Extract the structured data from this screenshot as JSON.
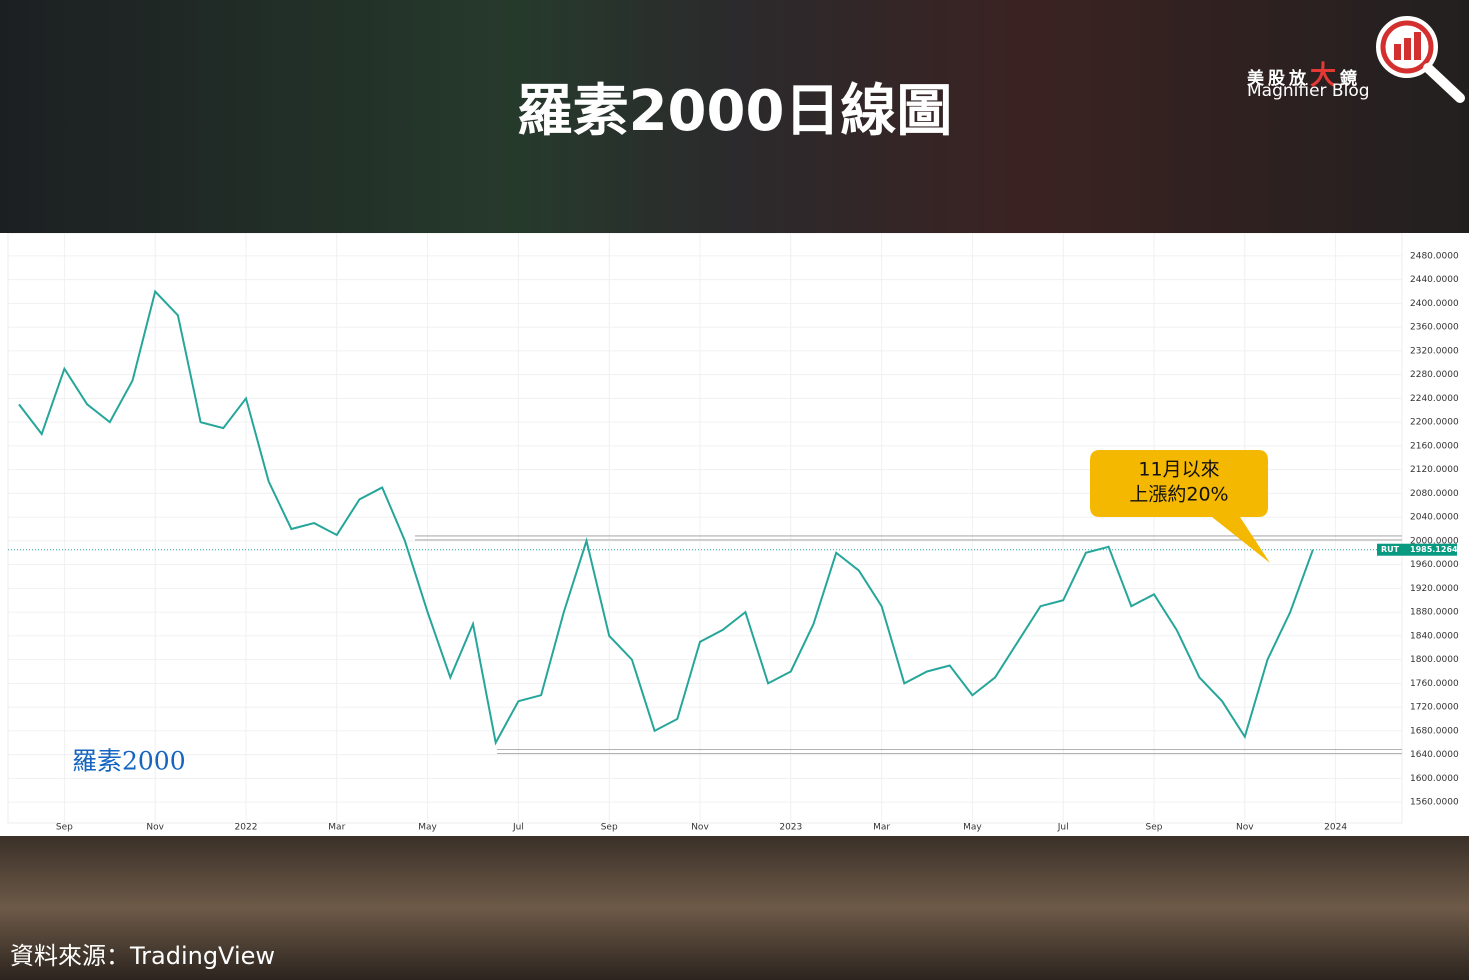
{
  "header": {
    "title": "羅素2000日線圖",
    "brand_parts": [
      "美股放",
      "大",
      "鏡"
    ],
    "brand_sub": "Magnifier Blog"
  },
  "chart_data": {
    "type": "line",
    "label": "羅素2000",
    "callout": [
      "11月以來",
      "上漲約20%"
    ],
    "categories": [
      null,
      null,
      "Sep",
      null,
      null,
      null,
      "Nov",
      null,
      null,
      null,
      "2022",
      null,
      null,
      null,
      "Mar",
      null,
      null,
      null,
      "May",
      null,
      null,
      null,
      "Jul",
      null,
      null,
      null,
      "Sep",
      null,
      null,
      null,
      "Nov",
      null,
      null,
      null,
      "2023",
      null,
      null,
      null,
      "Mar",
      null,
      null,
      null,
      "May",
      null,
      null,
      null,
      "Jul",
      null,
      null,
      null,
      "Sep",
      null,
      null,
      null,
      "Nov",
      null,
      null,
      null,
      "2024"
    ],
    "series": [
      {
        "name": "RUT",
        "color": "#26a69a",
        "values": [
          2230,
          2180,
          2290,
          2230,
          2200,
          2270,
          2420,
          2380,
          2200,
          2190,
          2240,
          2100,
          2020,
          2030,
          2010,
          2070,
          2090,
          2000,
          1880,
          1770,
          1860,
          1660,
          1730,
          1740,
          1880,
          2000,
          1840,
          1800,
          1680,
          1700,
          1830,
          1850,
          1880,
          1760,
          1780,
          1860,
          1980,
          1950,
          1890,
          1760,
          1780,
          1790,
          1740,
          1770,
          1830,
          1890,
          1900,
          1980,
          1990,
          1890,
          1910,
          1850,
          1770,
          1730,
          1670,
          1800,
          1880,
          1985.1264,
          null
        ]
      }
    ],
    "last_price": 1985.1264,
    "reference_lines": [
      2005,
      1645
    ],
    "ylim": [
      1545,
      2490
    ],
    "yticks": [
      {
        "value": 2480,
        "label": "2480.0000"
      },
      {
        "value": 2440,
        "label": "2440.0000"
      },
      {
        "value": 2400,
        "label": "2400.0000"
      },
      {
        "value": 2360,
        "label": "2360.0000"
      },
      {
        "value": 2320,
        "label": "2320.0000"
      },
      {
        "value": 2280,
        "label": "2280.0000"
      },
      {
        "value": 2240,
        "label": "2240.0000"
      },
      {
        "value": 2200,
        "label": "2200.0000"
      },
      {
        "value": 2160,
        "label": "2160.0000"
      },
      {
        "value": 2120,
        "label": "2120.0000"
      },
      {
        "value": 2080,
        "label": "2080.0000"
      },
      {
        "value": 2040,
        "label": "2040.0000"
      },
      {
        "value": 2000,
        "label": "2000.0000"
      },
      {
        "value": 1960,
        "label": "1960.0000"
      },
      {
        "value": 1920,
        "label": "1920.0000"
      },
      {
        "value": 1880,
        "label": "1880.0000"
      },
      {
        "value": 1840,
        "label": "1840.0000"
      },
      {
        "value": 1800,
        "label": "1800.0000"
      },
      {
        "value": 1760,
        "label": "1760.0000"
      },
      {
        "value": 1720,
        "label": "1720.0000"
      },
      {
        "value": 1680,
        "label": "1680.0000"
      },
      {
        "value": 1640,
        "label": "1640.0000"
      },
      {
        "value": 1600,
        "label": "1600.0000"
      },
      {
        "value": 1560,
        "label": "1560.0000"
      }
    ],
    "grid": true
  },
  "footer": {
    "source": "資料來源：TradingView"
  }
}
